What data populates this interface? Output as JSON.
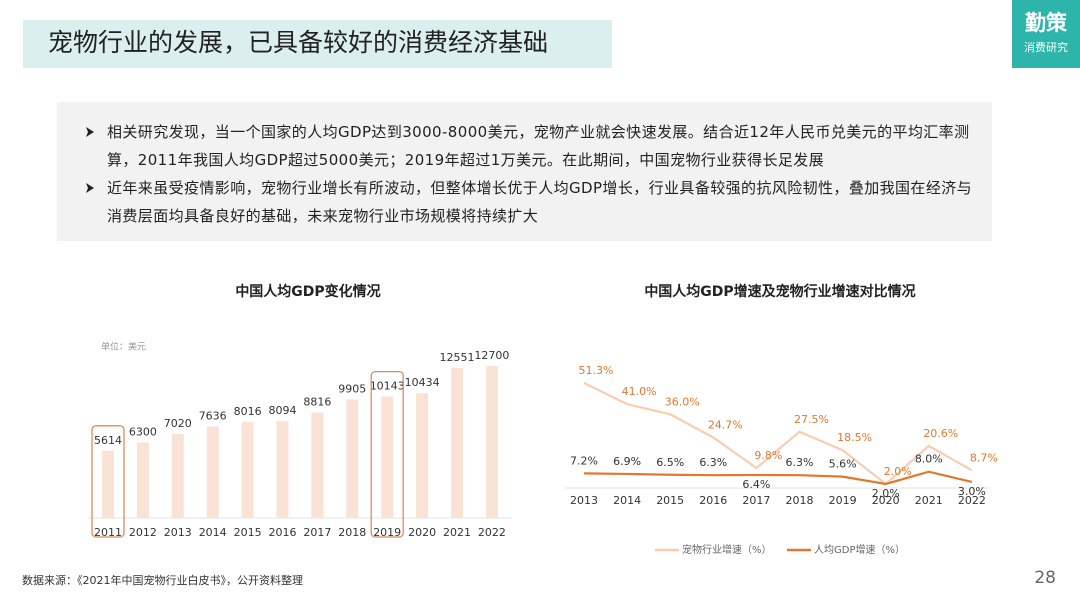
{
  "header": {
    "title": "宠物行业的发展，已具备较好的消费经济基础",
    "logo": "勤策",
    "logo_sub": "消费研究"
  },
  "bullets": [
    "相关研究发现，当一个国家的人均GDP达到3000-8000美元，宠物产业就会快速发展。结合近12年人民币兑美元的平均汇率测算，2011年我国人均GDP超过5000美元；2019年超过1万美元。在此期间，中国宠物行业获得长足发展",
    "近年来虽受疫情影响，宠物行业增长有所波动，但整体增长优于人均GDP增长，行业具备较强的抗风险韧性，叠加我国在经济与消费层面均具备良好的基础，未来宠物行业市场规模将持续扩大"
  ],
  "chart_data": [
    {
      "type": "bar",
      "title": "中国人均GDP变化情况",
      "unit": "单位：美元",
      "categories": [
        "2011",
        "2012",
        "2013",
        "2014",
        "2015",
        "2016",
        "2017",
        "2018",
        "2019",
        "2020",
        "2021",
        "2022"
      ],
      "values": [
        5614,
        6300,
        7020,
        7636,
        8016,
        8094,
        8816,
        9905,
        10143,
        10434,
        12551,
        12700
      ],
      "color": "#fbe2d6",
      "highlight": [
        "2011",
        "2019"
      ],
      "highlight_color": "#e08a5a"
    },
    {
      "type": "line",
      "title": "中国人均GDP增速及宠物行业增速对比情况",
      "categories": [
        "2013",
        "2014",
        "2015",
        "2016",
        "2017",
        "2018",
        "2019",
        "2020",
        "2021",
        "2022"
      ],
      "series": [
        {
          "name": "宠物行业增速（%）",
          "color": "#f8cdb2",
          "values": [
            51.3,
            41.0,
            36.0,
            24.7,
            9.8,
            27.5,
            18.5,
            2.0,
            20.6,
            8.7
          ],
          "value_labels": [
            "51.3%",
            "41.0%",
            "36.0%",
            "24.7%",
            "9.8%",
            "27.5%",
            "18.5%",
            "2.0%",
            "20.6%",
            "8.7%"
          ]
        },
        {
          "name": "人均GDP增速（%）",
          "color": "#e0782f",
          "values": [
            7.2,
            6.9,
            6.5,
            6.3,
            6.4,
            6.3,
            5.6,
            2.0,
            8.0,
            3.0
          ],
          "value_labels": [
            "7.2%",
            "6.9%",
            "6.5%",
            "6.3%",
            "6.4%",
            "6.3%",
            "5.6%",
            "2.0%",
            "8.0%",
            "3.0%"
          ]
        }
      ]
    }
  ],
  "footer": {
    "source": "数据来源：《2021年中国宠物行业白皮书》，公开资料整理",
    "page": "28"
  }
}
